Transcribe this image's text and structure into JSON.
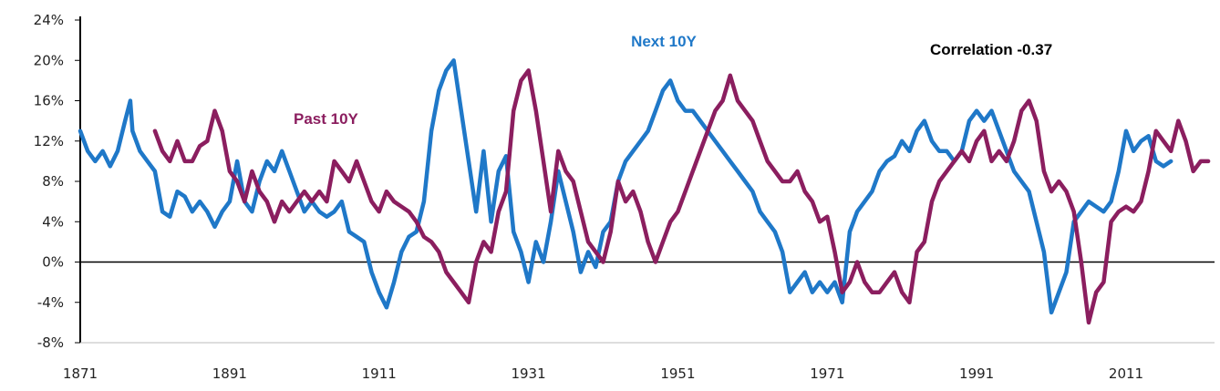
{
  "chart_data": {
    "type": "line",
    "title": "",
    "xlabel": "",
    "ylabel": "",
    "xlim": [
      1871,
      2025
    ],
    "ylim": [
      -8,
      24
    ],
    "x_ticks": [
      1871,
      1891,
      1911,
      1931,
      1951,
      1971,
      1991,
      2011
    ],
    "x_tick_labels": [
      "1871",
      "1891",
      "1911",
      "1931",
      "1951",
      "1971",
      "1991",
      "2011"
    ],
    "y_ticks": [
      -8,
      -4,
      0,
      4,
      8,
      12,
      16,
      20,
      24
    ],
    "y_tick_labels": [
      "-8%",
      "-4%",
      "0%",
      "4%",
      "8%",
      "12%",
      "16%",
      "20%",
      "24%"
    ],
    "grid": false,
    "annotations": [
      {
        "text": "Next 10Y",
        "color": "#1f78c8"
      },
      {
        "text": "Past 10Y",
        "color": "#8b1e5f"
      },
      {
        "text": "Correlation -0.37",
        "color": "#000000"
      }
    ],
    "series": [
      {
        "name": "Next 10Y",
        "color": "#1f78c8",
        "points": [
          [
            1871,
            13
          ],
          [
            1872,
            11
          ],
          [
            1873,
            10
          ],
          [
            1874,
            11
          ],
          [
            1875,
            9.5
          ],
          [
            1876,
            11
          ],
          [
            1877,
            14
          ],
          [
            1877.7,
            16
          ],
          [
            1878,
            13
          ],
          [
            1879,
            11
          ],
          [
            1880,
            10
          ],
          [
            1881,
            9
          ],
          [
            1882,
            5
          ],
          [
            1883,
            4.5
          ],
          [
            1884,
            7
          ],
          [
            1885,
            6.5
          ],
          [
            1886,
            5
          ],
          [
            1887,
            6
          ],
          [
            1888,
            5
          ],
          [
            1889,
            3.5
          ],
          [
            1890,
            5
          ],
          [
            1891,
            6
          ],
          [
            1892,
            10
          ],
          [
            1893,
            6
          ],
          [
            1894,
            5
          ],
          [
            1895,
            8
          ],
          [
            1896,
            10
          ],
          [
            1897,
            9
          ],
          [
            1898,
            11
          ],
          [
            1899,
            9
          ],
          [
            1900,
            7
          ],
          [
            1901,
            5
          ],
          [
            1902,
            6
          ],
          [
            1903,
            5
          ],
          [
            1904,
            4.5
          ],
          [
            1905,
            5
          ],
          [
            1906,
            6
          ],
          [
            1907,
            3
          ],
          [
            1908,
            2.5
          ],
          [
            1909,
            2
          ],
          [
            1910,
            -1
          ],
          [
            1911,
            -3
          ],
          [
            1912,
            -4.5
          ],
          [
            1913,
            -2
          ],
          [
            1914,
            1
          ],
          [
            1915,
            2.5
          ],
          [
            1916,
            3
          ],
          [
            1917,
            6
          ],
          [
            1918,
            13
          ],
          [
            1919,
            17
          ],
          [
            1920,
            19
          ],
          [
            1921,
            20
          ],
          [
            1922,
            15
          ],
          [
            1923,
            10
          ],
          [
            1924,
            5
          ],
          [
            1925,
            11
          ],
          [
            1926,
            4
          ],
          [
            1927,
            9
          ],
          [
            1928,
            10.5
          ],
          [
            1929,
            3
          ],
          [
            1930,
            1
          ],
          [
            1931,
            -2
          ],
          [
            1932,
            2
          ],
          [
            1933,
            0
          ],
          [
            1934,
            4
          ],
          [
            1935,
            9
          ],
          [
            1936,
            6
          ],
          [
            1937,
            3
          ],
          [
            1938,
            -1
          ],
          [
            1939,
            1
          ],
          [
            1940,
            -0.5
          ],
          [
            1941,
            3
          ],
          [
            1942,
            4
          ],
          [
            1943,
            8
          ],
          [
            1944,
            10
          ],
          [
            1945,
            11
          ],
          [
            1946,
            12
          ],
          [
            1947,
            13
          ],
          [
            1948,
            15
          ],
          [
            1949,
            17
          ],
          [
            1950,
            18
          ],
          [
            1951,
            16
          ],
          [
            1952,
            15
          ],
          [
            1953,
            15
          ],
          [
            1954,
            14
          ],
          [
            1955,
            13
          ],
          [
            1956,
            12
          ],
          [
            1957,
            11
          ],
          [
            1958,
            10
          ],
          [
            1959,
            9
          ],
          [
            1960,
            8
          ],
          [
            1961,
            7
          ],
          [
            1962,
            5
          ],
          [
            1963,
            4
          ],
          [
            1964,
            3
          ],
          [
            1965,
            1
          ],
          [
            1966,
            -3
          ],
          [
            1967,
            -2
          ],
          [
            1968,
            -1
          ],
          [
            1969,
            -3
          ],
          [
            1970,
            -2
          ],
          [
            1971,
            -3
          ],
          [
            1972,
            -2
          ],
          [
            1973,
            -4
          ],
          [
            1974,
            3
          ],
          [
            1975,
            5
          ],
          [
            1976,
            6
          ],
          [
            1977,
            7
          ],
          [
            1978,
            9
          ],
          [
            1979,
            10
          ],
          [
            1980,
            10.5
          ],
          [
            1981,
            12
          ],
          [
            1982,
            11
          ],
          [
            1983,
            13
          ],
          [
            1984,
            14
          ],
          [
            1985,
            12
          ],
          [
            1986,
            11
          ],
          [
            1987,
            11
          ],
          [
            1988,
            10
          ],
          [
            1989,
            11
          ],
          [
            1990,
            14
          ],
          [
            1991,
            15
          ],
          [
            1992,
            14
          ],
          [
            1993,
            15
          ],
          [
            1994,
            13
          ],
          [
            1995,
            11
          ],
          [
            1996,
            9
          ],
          [
            1997,
            8
          ],
          [
            1998,
            7
          ],
          [
            1999,
            4
          ],
          [
            2000,
            1
          ],
          [
            2001,
            -5
          ],
          [
            2002,
            -3
          ],
          [
            2003,
            -1
          ],
          [
            2004,
            4
          ],
          [
            2005,
            5
          ],
          [
            2006,
            6
          ],
          [
            2007,
            5.5
          ],
          [
            2008,
            5
          ],
          [
            2009,
            6
          ],
          [
            2010,
            9
          ],
          [
            2011,
            13
          ],
          [
            2012,
            11
          ],
          [
            2013,
            12
          ],
          [
            2014,
            12.5
          ],
          [
            2015,
            10
          ],
          [
            2016,
            9.5
          ],
          [
            2017,
            10
          ]
        ]
      },
      {
        "name": "Past 10Y",
        "color": "#8b1e5f",
        "points": [
          [
            1881,
            13
          ],
          [
            1882,
            11
          ],
          [
            1883,
            10
          ],
          [
            1884,
            12
          ],
          [
            1885,
            10
          ],
          [
            1886,
            10
          ],
          [
            1887,
            11.5
          ],
          [
            1888,
            12
          ],
          [
            1889,
            15
          ],
          [
            1890,
            13
          ],
          [
            1891,
            9
          ],
          [
            1892,
            8
          ],
          [
            1893,
            6
          ],
          [
            1894,
            9
          ],
          [
            1895,
            7
          ],
          [
            1896,
            6
          ],
          [
            1897,
            4
          ],
          [
            1898,
            6
          ],
          [
            1899,
            5
          ],
          [
            1900,
            6
          ],
          [
            1901,
            7
          ],
          [
            1902,
            6
          ],
          [
            1903,
            7
          ],
          [
            1904,
            6
          ],
          [
            1905,
            10
          ],
          [
            1906,
            9
          ],
          [
            1907,
            8
          ],
          [
            1908,
            10
          ],
          [
            1909,
            8
          ],
          [
            1910,
            6
          ],
          [
            1911,
            5
          ],
          [
            1912,
            7
          ],
          [
            1913,
            6
          ],
          [
            1914,
            5.5
          ],
          [
            1915,
            5
          ],
          [
            1916,
            4
          ],
          [
            1917,
            2.5
          ],
          [
            1918,
            2
          ],
          [
            1919,
            1
          ],
          [
            1920,
            -1
          ],
          [
            1921,
            -2
          ],
          [
            1922,
            -3
          ],
          [
            1923,
            -4
          ],
          [
            1924,
            0
          ],
          [
            1925,
            2
          ],
          [
            1926,
            1
          ],
          [
            1927,
            5
          ],
          [
            1928,
            7
          ],
          [
            1929,
            15
          ],
          [
            1930,
            18
          ],
          [
            1931,
            19
          ],
          [
            1932,
            15
          ],
          [
            1933,
            10
          ],
          [
            1934,
            5
          ],
          [
            1935,
            11
          ],
          [
            1936,
            9
          ],
          [
            1937,
            8
          ],
          [
            1938,
            5
          ],
          [
            1939,
            2
          ],
          [
            1940,
            1
          ],
          [
            1941,
            0
          ],
          [
            1942,
            3
          ],
          [
            1943,
            8
          ],
          [
            1944,
            6
          ],
          [
            1945,
            7
          ],
          [
            1946,
            5
          ],
          [
            1947,
            2
          ],
          [
            1948,
            0
          ],
          [
            1949,
            2
          ],
          [
            1950,
            4
          ],
          [
            1951,
            5
          ],
          [
            1952,
            7
          ],
          [
            1953,
            9
          ],
          [
            1954,
            11
          ],
          [
            1955,
            13
          ],
          [
            1956,
            15
          ],
          [
            1957,
            16
          ],
          [
            1958,
            18.5
          ],
          [
            1959,
            16
          ],
          [
            1960,
            15
          ],
          [
            1961,
            14
          ],
          [
            1962,
            12
          ],
          [
            1963,
            10
          ],
          [
            1964,
            9
          ],
          [
            1965,
            8
          ],
          [
            1966,
            8
          ],
          [
            1967,
            9
          ],
          [
            1968,
            7
          ],
          [
            1969,
            6
          ],
          [
            1970,
            4
          ],
          [
            1971,
            4.5
          ],
          [
            1972,
            1
          ],
          [
            1973,
            -3
          ],
          [
            1974,
            -2
          ],
          [
            1975,
            0
          ],
          [
            1976,
            -2
          ],
          [
            1977,
            -3
          ],
          [
            1978,
            -3
          ],
          [
            1979,
            -2
          ],
          [
            1980,
            -1
          ],
          [
            1981,
            -3
          ],
          [
            1982,
            -4
          ],
          [
            1983,
            1
          ],
          [
            1984,
            2
          ],
          [
            1985,
            6
          ],
          [
            1986,
            8
          ],
          [
            1987,
            9
          ],
          [
            1988,
            10
          ],
          [
            1989,
            11
          ],
          [
            1990,
            10
          ],
          [
            1991,
            12
          ],
          [
            1992,
            13
          ],
          [
            1993,
            10
          ],
          [
            1994,
            11
          ],
          [
            1995,
            10
          ],
          [
            1996,
            12
          ],
          [
            1997,
            15
          ],
          [
            1998,
            16
          ],
          [
            1999,
            14
          ],
          [
            2000,
            9
          ],
          [
            2001,
            7
          ],
          [
            2002,
            8
          ],
          [
            2003,
            7
          ],
          [
            2004,
            5
          ],
          [
            2005,
            0
          ],
          [
            2006,
            -6
          ],
          [
            2007,
            -3
          ],
          [
            2008,
            -2
          ],
          [
            2009,
            4
          ],
          [
            2010,
            5
          ],
          [
            2011,
            5.5
          ],
          [
            2012,
            5
          ],
          [
            2013,
            6
          ],
          [
            2014,
            9
          ],
          [
            2015,
            13
          ],
          [
            2016,
            12
          ],
          [
            2017,
            11
          ],
          [
            2018,
            14
          ],
          [
            2019,
            12
          ],
          [
            2020,
            9
          ],
          [
            2021,
            10
          ],
          [
            2022,
            10
          ]
        ]
      }
    ]
  }
}
